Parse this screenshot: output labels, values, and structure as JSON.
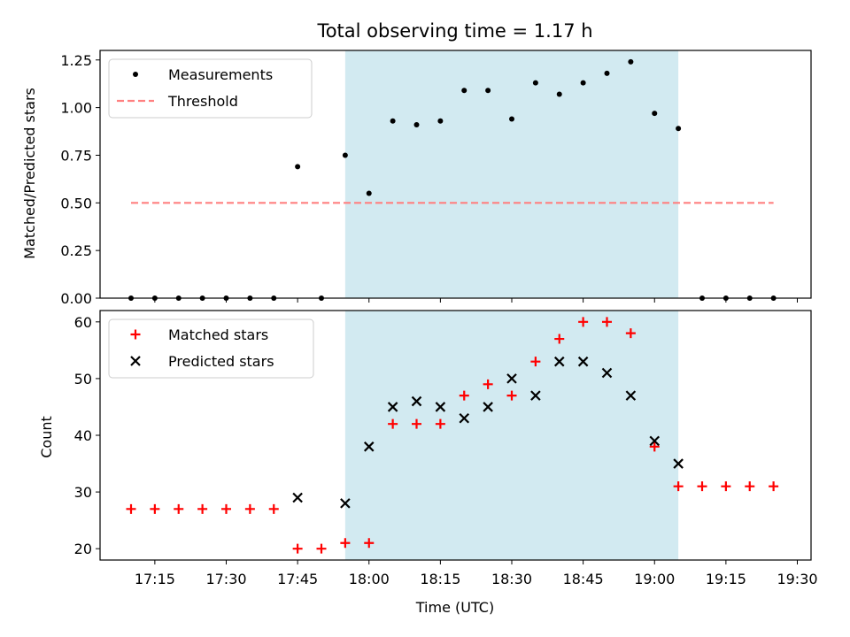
{
  "chart_data": [
    {
      "type": "scatter",
      "title": "Total observing time = 1.17 h",
      "xlabel": "",
      "ylabel": "Matched/Predicted stars",
      "ylim": [
        0,
        1.3
      ],
      "yticks": [
        "0.00",
        "0.25",
        "0.50",
        "0.75",
        "1.00",
        "1.25"
      ],
      "legend_position": "top-left",
      "highlight_span": {
        "start": "17:55",
        "end": "19:05",
        "color": "#add8e6"
      },
      "series": [
        {
          "name": "Measurements",
          "marker": "dot",
          "color": "#000000",
          "x": [
            "17:10",
            "17:15",
            "17:20",
            "17:25",
            "17:30",
            "17:35",
            "17:40",
            "17:45",
            "17:50",
            "17:55",
            "18:00",
            "18:05",
            "18:10",
            "18:15",
            "18:20",
            "18:25",
            "18:30",
            "18:35",
            "18:40",
            "18:45",
            "18:50",
            "18:55",
            "19:00",
            "19:05",
            "19:10",
            "19:15",
            "19:20",
            "19:25"
          ],
          "y": [
            0,
            0,
            0,
            0,
            0,
            0,
            0,
            0.69,
            0,
            0.75,
            0.55,
            0.93,
            0.91,
            0.93,
            1.09,
            1.09,
            0.94,
            1.13,
            1.07,
            1.13,
            1.18,
            1.24,
            0.97,
            0.89,
            0,
            0,
            0,
            0
          ]
        },
        {
          "name": "Threshold",
          "marker": "dashed-line",
          "color": "#ff8080",
          "x": [
            "17:10",
            "19:25"
          ],
          "y": [
            0.5,
            0.5
          ]
        }
      ]
    },
    {
      "type": "scatter",
      "title": "",
      "xlabel": "Time (UTC)",
      "ylabel": "Count",
      "ylim": [
        18,
        62
      ],
      "yticks": [
        "20",
        "30",
        "40",
        "50",
        "60"
      ],
      "xticks": [
        "17:15",
        "17:30",
        "17:45",
        "18:00",
        "18:15",
        "18:30",
        "18:45",
        "19:00",
        "19:15",
        "19:30"
      ],
      "legend_position": "top-left",
      "highlight_span": {
        "start": "17:55",
        "end": "19:05",
        "color": "#add8e6"
      },
      "series": [
        {
          "name": "Matched stars",
          "marker": "plus",
          "color": "#ff0000",
          "x": [
            "17:10",
            "17:15",
            "17:20",
            "17:25",
            "17:30",
            "17:35",
            "17:40",
            "17:45",
            "17:50",
            "17:55",
            "18:00",
            "18:05",
            "18:10",
            "18:15",
            "18:20",
            "18:25",
            "18:30",
            "18:35",
            "18:40",
            "18:45",
            "18:50",
            "18:55",
            "19:00",
            "19:05",
            "19:10",
            "19:15",
            "19:20",
            "19:25"
          ],
          "y": [
            27,
            27,
            27,
            27,
            27,
            27,
            27,
            20,
            20,
            21,
            21,
            42,
            42,
            42,
            47,
            49,
            47,
            53,
            57,
            60,
            60,
            58,
            38,
            31,
            31,
            31,
            31,
            31
          ]
        },
        {
          "name": "Predicted stars",
          "marker": "x",
          "color": "#000000",
          "x": [
            "17:45",
            "17:55",
            "18:00",
            "18:05",
            "18:10",
            "18:15",
            "18:20",
            "18:25",
            "18:30",
            "18:35",
            "18:40",
            "18:45",
            "18:50",
            "18:55",
            "19:00",
            "19:05"
          ],
          "y": [
            29,
            28,
            38,
            45,
            46,
            45,
            43,
            45,
            50,
            47,
            53,
            53,
            51,
            47,
            39,
            35
          ]
        }
      ]
    }
  ]
}
